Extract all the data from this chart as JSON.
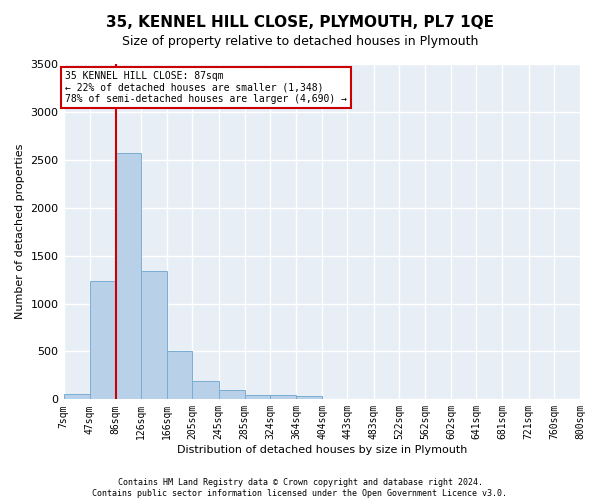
{
  "title": "35, KENNEL HILL CLOSE, PLYMOUTH, PL7 1QE",
  "subtitle": "Size of property relative to detached houses in Plymouth",
  "xlabel": "Distribution of detached houses by size in Plymouth",
  "ylabel": "Number of detached properties",
  "bar_color": "#b8d0e8",
  "bar_edge_color": "#7aadd4",
  "background_color": "#e8eef5",
  "grid_color": "#ffffff",
  "bin_edges": [
    7,
    47,
    86,
    126,
    166,
    205,
    245,
    285,
    324,
    364,
    404,
    443,
    483,
    522,
    562,
    602,
    641,
    681,
    721,
    760,
    800
  ],
  "bar_heights": [
    60,
    1240,
    2570,
    1340,
    500,
    195,
    100,
    50,
    50,
    40,
    5,
    5,
    5,
    2,
    2,
    2,
    2,
    2,
    2,
    2
  ],
  "x_tick_labels": [
    "7sqm",
    "47sqm",
    "86sqm",
    "126sqm",
    "166sqm",
    "205sqm",
    "245sqm",
    "285sqm",
    "324sqm",
    "364sqm",
    "404sqm",
    "443sqm",
    "483sqm",
    "522sqm",
    "562sqm",
    "602sqm",
    "641sqm",
    "681sqm",
    "721sqm",
    "760sqm",
    "800sqm"
  ],
  "ylim": [
    0,
    3500
  ],
  "property_size": 87,
  "vline_color": "#cc0000",
  "annotation_text": "35 KENNEL HILL CLOSE: 87sqm\n← 22% of detached houses are smaller (1,348)\n78% of semi-detached houses are larger (4,690) →",
  "annotation_box_color": "#ffffff",
  "annotation_edge_color": "#cc0000",
  "footnote": "Contains HM Land Registry data © Crown copyright and database right 2024.\nContains public sector information licensed under the Open Government Licence v3.0.",
  "title_fontsize": 11,
  "subtitle_fontsize": 9,
  "ylabel_fontsize": 8,
  "xlabel_fontsize": 8,
  "tick_fontsize": 7,
  "annotation_fontsize": 7,
  "footnote_fontsize": 6
}
